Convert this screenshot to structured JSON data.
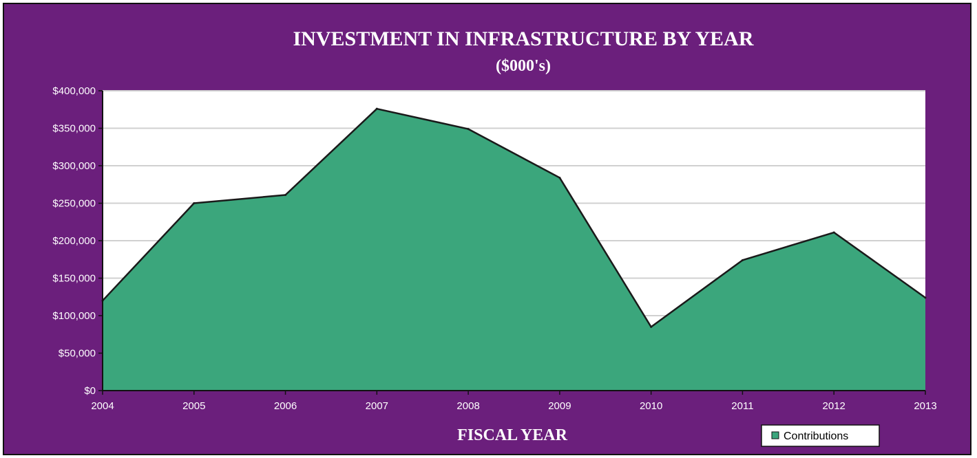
{
  "colors": {
    "background": "#6b1f7c",
    "plot_area": "#ffffff",
    "gridline": "#d0d0d0",
    "area_fill": "#3ba67c",
    "area_stroke": "#1a1a1a",
    "text": "#ffffff"
  },
  "chart_data": {
    "type": "area",
    "title": "INVESTMENT IN INFRASTRUCTURE BY YEAR",
    "subtitle": "($000's)",
    "xlabel": "FISCAL YEAR",
    "ylabel": "",
    "categories": [
      "2004",
      "2005",
      "2006",
      "2007",
      "2008",
      "2009",
      "2010",
      "2011",
      "2012",
      "2013"
    ],
    "series": [
      {
        "name": "Contributions",
        "values": [
          120000,
          250000,
          261000,
          376000,
          349000,
          284000,
          85000,
          174000,
          211000,
          124000
        ]
      }
    ],
    "ylim": [
      0,
      400000
    ],
    "yticks": [
      "$0",
      "$50,000",
      "$100,000",
      "$150,000",
      "$200,000",
      "$250,000",
      "$300,000",
      "$350,000",
      "$400,000"
    ],
    "grid": true,
    "legend_position": "bottom-right"
  }
}
